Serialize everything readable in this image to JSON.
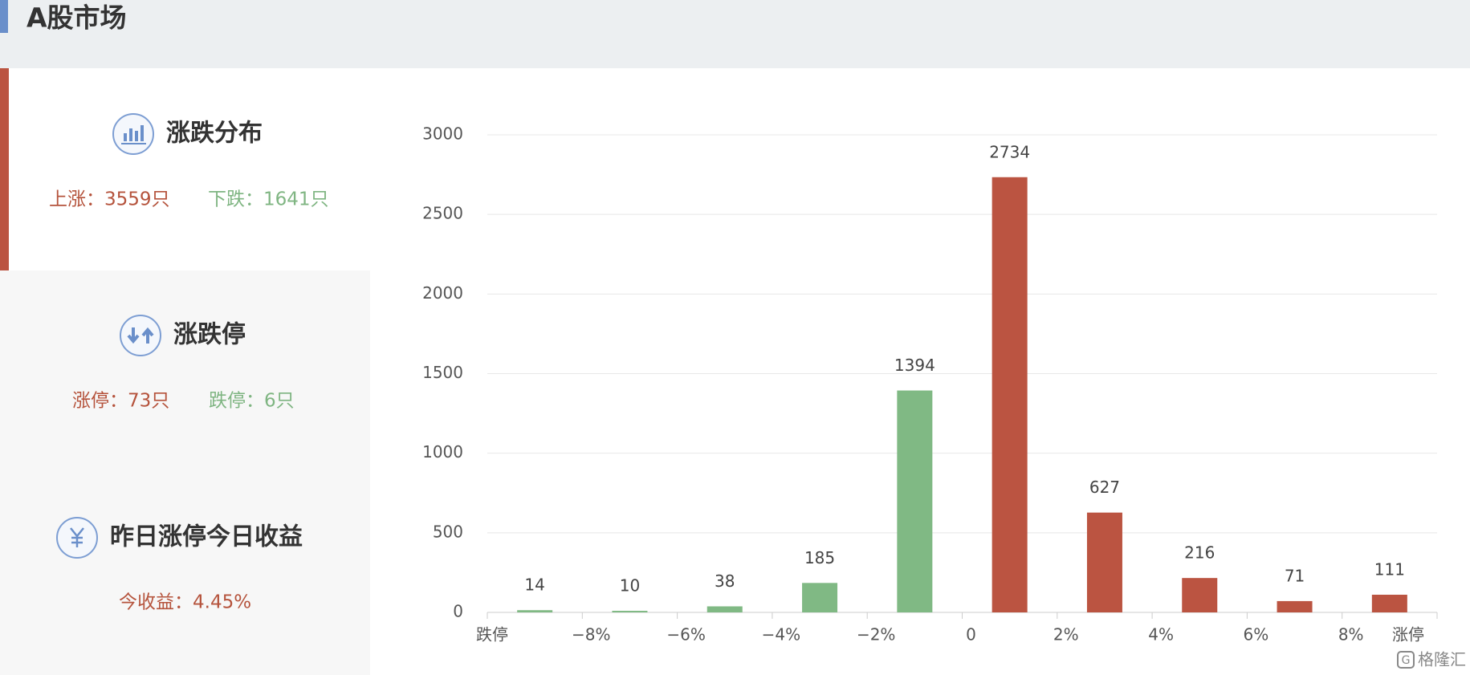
{
  "header": {
    "title": "A股市场"
  },
  "panels": [
    {
      "title": "涨跌分布",
      "items": [
        "上涨：3559只",
        "下跌：1641只"
      ]
    },
    {
      "title": "涨跌停",
      "items": [
        "涨停：73只",
        "跌停：6只"
      ]
    },
    {
      "title": "昨日涨停今日收益",
      "items": [
        "今收益：4.45%"
      ]
    }
  ],
  "chart_data": {
    "type": "histogram",
    "bins": [
      "跌停",
      "−8%",
      "−6%",
      "−4%",
      "−2%",
      "0",
      "2%",
      "4%",
      "6%",
      "8%",
      "涨停"
    ],
    "values": [
      14,
      10,
      38,
      185,
      1394,
      2734,
      627,
      216,
      71,
      111
    ],
    "colors": [
      "#80b984",
      "#80b984",
      "#80b984",
      "#80b984",
      "#80b984",
      "#bb5441",
      "#bb5441",
      "#bb5441",
      "#bb5441",
      "#bb5441"
    ],
    "ylim": [
      0,
      3000
    ],
    "yticks": [
      0,
      500,
      1000,
      1500,
      2000,
      2500,
      3000
    ],
    "grid": true
  },
  "watermark": "格隆汇"
}
